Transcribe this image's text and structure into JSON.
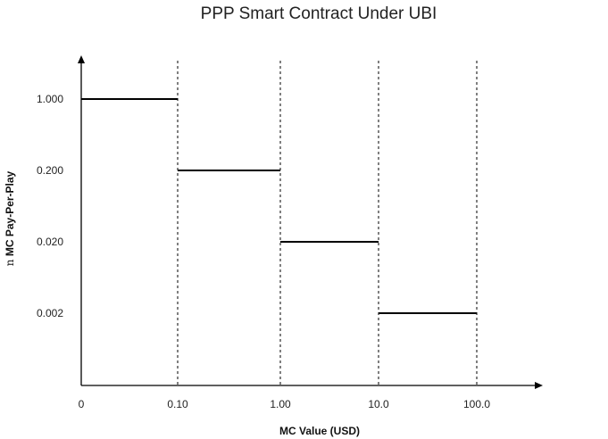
{
  "chart_data": {
    "type": "line",
    "title": "PPP Smart Contract Under UBI",
    "xlabel": "MC Value (USD)",
    "ylabel": {
      "prefix": "n",
      "text": "MC Pay-Per-Play"
    },
    "x_tick_labels": [
      "0",
      "0.10",
      "1.00",
      "10.0",
      "100.0"
    ],
    "y_tick_labels": [
      "1.000",
      "0.200",
      "0.020",
      "0.002"
    ],
    "series": [
      {
        "steps": [
          {
            "x_from": "0",
            "x_to": "0.10",
            "y": "1.000"
          },
          {
            "x_from": "0.10",
            "x_to": "1.00",
            "y": "0.200"
          },
          {
            "x_from": "1.00",
            "x_to": "10.0",
            "y": "0.020"
          },
          {
            "x_from": "10.0",
            "x_to": "100.0",
            "y": "0.002"
          }
        ]
      }
    ],
    "step_boundaries": [
      "0.10",
      "1.00",
      "10.0",
      "100.0"
    ],
    "grid": false,
    "colors": {
      "line": "#000000",
      "axis": "#000000",
      "boundary": "#000000"
    }
  }
}
